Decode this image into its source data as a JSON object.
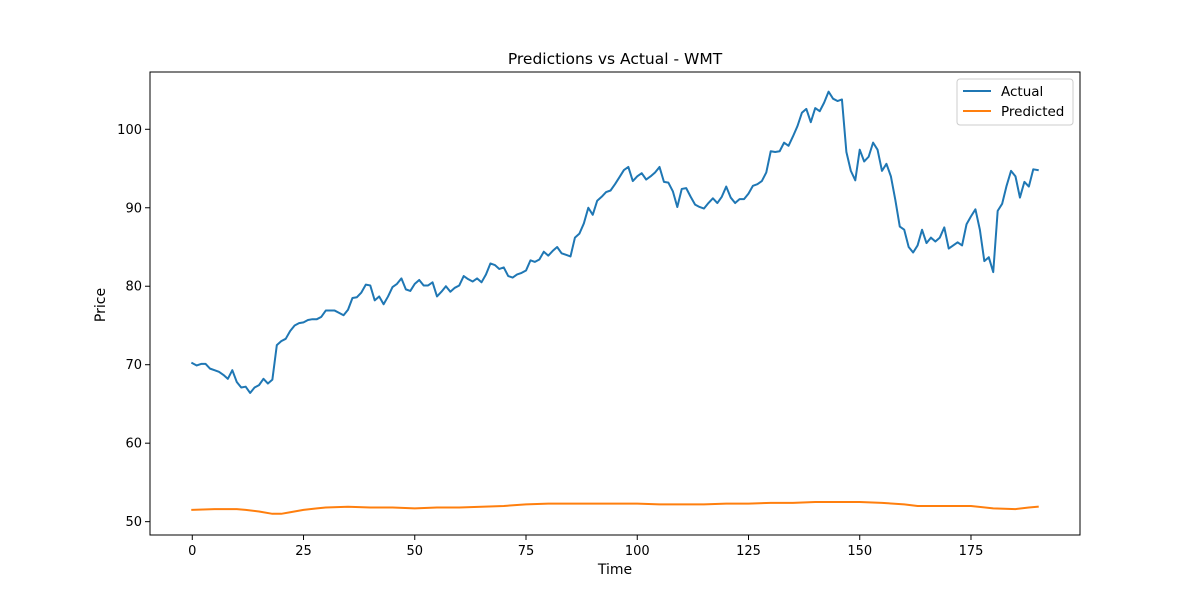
{
  "chart_data": {
    "type": "line",
    "title": "Predictions vs Actual - WMT",
    "xlabel": "Time",
    "ylabel": "Price",
    "xlim": [
      -9.5,
      199.5
    ],
    "ylim": [
      48.3,
      107.3
    ],
    "xticks": [
      0,
      25,
      50,
      75,
      100,
      125,
      150,
      175
    ],
    "yticks": [
      50,
      60,
      70,
      80,
      90,
      100
    ],
    "grid": false,
    "legend_position": "top-right",
    "series": [
      {
        "name": "Actual",
        "color": "#1f77b4",
        "x": [
          0,
          1,
          2,
          3,
          4,
          5,
          6,
          7,
          8,
          9,
          10,
          11,
          12,
          13,
          14,
          15,
          16,
          17,
          18,
          19,
          20,
          21,
          22,
          23,
          24,
          25,
          26,
          27,
          28,
          29,
          30,
          31,
          32,
          33,
          34,
          35,
          36,
          37,
          38,
          39,
          40,
          41,
          42,
          43,
          44,
          45,
          46,
          47,
          48,
          49,
          50,
          51,
          52,
          53,
          54,
          55,
          56,
          57,
          58,
          59,
          60,
          61,
          62,
          63,
          64,
          65,
          66,
          67,
          68,
          69,
          70,
          71,
          72,
          73,
          74,
          75,
          76,
          77,
          78,
          79,
          80,
          81,
          82,
          83,
          84,
          85,
          86,
          87,
          88,
          89,
          90,
          91,
          92,
          93,
          94,
          95,
          96,
          97,
          98,
          99,
          100,
          101,
          102,
          103,
          104,
          105,
          106,
          107,
          108,
          109,
          110,
          111,
          112,
          113,
          114,
          115,
          116,
          117,
          118,
          119,
          120,
          121,
          122,
          123,
          124,
          125,
          126,
          127,
          128,
          129,
          130,
          131,
          132,
          133,
          134,
          135,
          136,
          137,
          138,
          139,
          140,
          141,
          142,
          143,
          144,
          145,
          146,
          147,
          148,
          149,
          150,
          151,
          152,
          153,
          154,
          155,
          156,
          157,
          158,
          159,
          160,
          161,
          162,
          163,
          164,
          165,
          166,
          167,
          168,
          169,
          170,
          171,
          172,
          173,
          174,
          175,
          176,
          177,
          178,
          179,
          180,
          181,
          182,
          183,
          184,
          185,
          186,
          187,
          188,
          189,
          190
        ],
        "values": [
          70.2,
          69.9,
          70.1,
          70.1,
          69.5,
          69.3,
          69.1,
          68.7,
          68.2,
          69.3,
          67.8,
          67.1,
          67.2,
          66.4,
          67.1,
          67.4,
          68.2,
          67.6,
          68.1,
          72.5,
          73.0,
          73.3,
          74.3,
          75.0,
          75.3,
          75.4,
          75.7,
          75.8,
          75.8,
          76.1,
          76.9,
          76.9,
          76.9,
          76.6,
          76.3,
          77.0,
          78.5,
          78.6,
          79.2,
          80.2,
          80.1,
          78.2,
          78.7,
          77.7,
          78.7,
          79.9,
          80.3,
          81.0,
          79.6,
          79.4,
          80.3,
          80.8,
          80.1,
          80.1,
          80.5,
          78.7,
          79.3,
          80.0,
          79.3,
          79.8,
          80.1,
          81.3,
          80.9,
          80.6,
          81.0,
          80.5,
          81.5,
          82.9,
          82.7,
          82.2,
          82.4,
          81.3,
          81.1,
          81.5,
          81.7,
          82.0,
          83.3,
          83.1,
          83.4,
          84.4,
          83.9,
          84.5,
          85.0,
          84.2,
          84.0,
          83.8,
          86.2,
          86.7,
          88.0,
          90.0,
          89.1,
          90.9,
          91.4,
          92.0,
          92.2,
          93.0,
          93.9,
          94.8,
          95.2,
          93.4,
          94.0,
          94.4,
          93.6,
          94.0,
          94.5,
          95.2,
          93.3,
          93.2,
          92.1,
          90.1,
          92.4,
          92.5,
          91.4,
          90.4,
          90.1,
          89.9,
          90.6,
          91.2,
          90.6,
          91.4,
          92.7,
          91.3,
          90.6,
          91.1,
          91.1,
          91.8,
          92.8,
          93.0,
          93.4,
          94.5,
          97.2,
          97.1,
          97.2,
          98.3,
          97.9,
          99.1,
          100.4,
          102.1,
          102.6,
          100.9,
          102.7,
          102.3,
          103.4,
          104.8,
          103.9,
          103.6,
          103.8,
          97.1,
          94.7,
          93.5,
          97.4,
          95.9,
          96.5,
          98.3,
          97.4,
          94.7,
          95.6,
          94.0,
          91.0,
          87.6,
          87.2,
          85.0,
          84.3,
          85.2,
          87.2,
          85.5,
          86.2,
          85.7,
          86.2,
          87.5,
          84.8,
          85.2,
          85.6,
          85.2,
          87.9,
          88.9,
          89.8,
          87.2,
          83.2,
          83.7,
          81.8,
          89.6,
          90.5,
          92.8,
          94.7,
          94.0,
          91.3,
          93.3,
          92.7,
          94.9,
          94.8
        ]
      },
      {
        "name": "Predicted",
        "color": "#ff7f0e",
        "x": [
          0,
          5,
          10,
          12,
          15,
          18,
          20,
          22,
          25,
          28,
          30,
          35,
          40,
          45,
          50,
          55,
          60,
          65,
          70,
          75,
          80,
          85,
          90,
          95,
          100,
          105,
          110,
          115,
          120,
          125,
          130,
          135,
          140,
          145,
          150,
          155,
          160,
          163,
          165,
          170,
          175,
          180,
          185,
          188,
          190
        ],
        "values": [
          51.5,
          51.6,
          51.6,
          51.5,
          51.3,
          51.0,
          51.0,
          51.2,
          51.5,
          51.7,
          51.8,
          51.9,
          51.8,
          51.8,
          51.7,
          51.8,
          51.8,
          51.9,
          52.0,
          52.2,
          52.3,
          52.3,
          52.3,
          52.3,
          52.3,
          52.2,
          52.2,
          52.2,
          52.3,
          52.3,
          52.4,
          52.4,
          52.5,
          52.5,
          52.5,
          52.4,
          52.2,
          52.0,
          52.0,
          52.0,
          52.0,
          51.7,
          51.6,
          51.8,
          51.9
        ]
      }
    ]
  }
}
